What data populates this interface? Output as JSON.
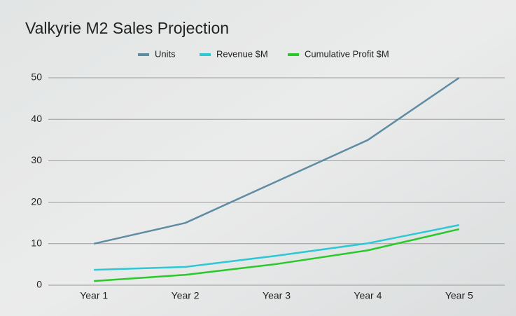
{
  "chart_data": {
    "type": "line",
    "title": "Valkyrie M2 Sales Projection",
    "categories": [
      "Year 1",
      "Year 2",
      "Year 3",
      "Year 4",
      "Year 5"
    ],
    "series": [
      {
        "name": "Units",
        "color": "#5f8ca3",
        "values": [
          10,
          15,
          25,
          35,
          50
        ]
      },
      {
        "name": "Revenue $M",
        "color": "#2cc8d6",
        "values": [
          3.7,
          4.4,
          7.1,
          10.1,
          14.5
        ]
      },
      {
        "name": "Cumulative Profit $M",
        "color": "#28c928",
        "values": [
          1.0,
          2.5,
          5.1,
          8.4,
          13.5
        ]
      }
    ],
    "ylim": [
      0,
      50
    ],
    "yticks": [
      0,
      10,
      20,
      30,
      40,
      50
    ],
    "grid": true,
    "legend": "top"
  }
}
